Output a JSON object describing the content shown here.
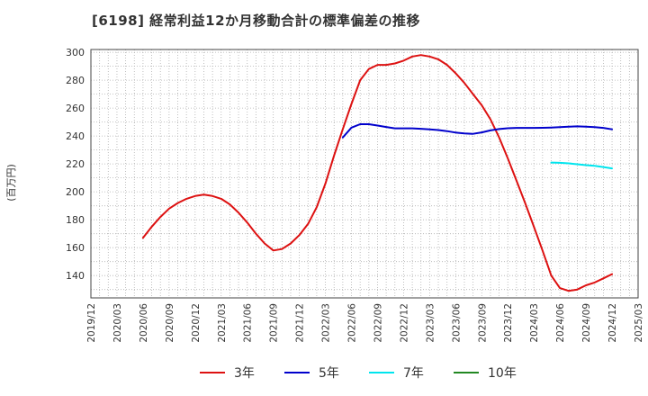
{
  "chart_data": {
    "type": "line",
    "title": "[6198]  経常利益12か月移動合計の標準偏差の推移",
    "xlabel": "",
    "ylabel": "(百万円)",
    "ylim": [
      124,
      302
    ],
    "yticks": [
      140,
      160,
      180,
      200,
      220,
      240,
      260,
      280,
      300
    ],
    "x_start": "2019-12",
    "x_end": "2025-03",
    "xtick_labels": [
      "2019/12",
      "2020/03",
      "2020/06",
      "2020/09",
      "2020/12",
      "2021/03",
      "2021/06",
      "2021/09",
      "2021/12",
      "2022/03",
      "2022/06",
      "2022/09",
      "2022/12",
      "2023/03",
      "2023/06",
      "2023/09",
      "2023/12",
      "2024/03",
      "2024/06",
      "2024/09",
      "2024/12",
      "2025/03"
    ],
    "grid": true,
    "legend_position": "bottom",
    "series": [
      {
        "name": "3年",
        "color": "#dd1111",
        "x": [
          "2020-06",
          "2020-07",
          "2020-08",
          "2020-09",
          "2020-10",
          "2020-11",
          "2020-12",
          "2021-01",
          "2021-02",
          "2021-03",
          "2021-04",
          "2021-05",
          "2021-06",
          "2021-07",
          "2021-08",
          "2021-09",
          "2021-10",
          "2021-11",
          "2021-12",
          "2022-01",
          "2022-02",
          "2022-03",
          "2022-04",
          "2022-05",
          "2022-06",
          "2022-07",
          "2022-08",
          "2022-09",
          "2022-10",
          "2022-11",
          "2022-12",
          "2023-01",
          "2023-02",
          "2023-03",
          "2023-04",
          "2023-05",
          "2023-06",
          "2023-07",
          "2023-08",
          "2023-09",
          "2023-10",
          "2023-11",
          "2023-12",
          "2024-01",
          "2024-02",
          "2024-03",
          "2024-04",
          "2024-05",
          "2024-06",
          "2024-07",
          "2024-08",
          "2024-09",
          "2024-10",
          "2024-11",
          "2024-12"
        ],
        "values": [
          167,
          175,
          182,
          188,
          192,
          195,
          197,
          198,
          197,
          195,
          191,
          185,
          178,
          170,
          163,
          158,
          159,
          163,
          169,
          177,
          189,
          206,
          226,
          245,
          263,
          280,
          288,
          291,
          291,
          292,
          294,
          297,
          298,
          297,
          295,
          291,
          285,
          278,
          270,
          262,
          252,
          239,
          224,
          208,
          192,
          175,
          158,
          140,
          131,
          129,
          130,
          133,
          135,
          138,
          141
        ]
      },
      {
        "name": "5年",
        "color": "#0000cc",
        "x": [
          "2022-05",
          "2022-06",
          "2022-07",
          "2022-08",
          "2022-09",
          "2022-10",
          "2022-11",
          "2022-12",
          "2023-01",
          "2023-02",
          "2023-03",
          "2023-04",
          "2023-05",
          "2023-06",
          "2023-07",
          "2023-08",
          "2023-09",
          "2023-10",
          "2023-11",
          "2023-12",
          "2024-01",
          "2024-02",
          "2024-03",
          "2024-04",
          "2024-05",
          "2024-06",
          "2024-07",
          "2024-08",
          "2024-09",
          "2024-10",
          "2024-11",
          "2024-12"
        ],
        "values": [
          239,
          246,
          248.5,
          248.5,
          247.5,
          246.5,
          245.5,
          245.5,
          245.5,
          245.2,
          244.8,
          244.3,
          243.5,
          242.5,
          241.8,
          241.6,
          242.6,
          244,
          245,
          245.6,
          245.8,
          245.8,
          245.8,
          245.9,
          246.1,
          246.4,
          246.7,
          246.9,
          246.7,
          246.4,
          245.8,
          244.8
        ]
      },
      {
        "name": "7年",
        "color": "#00e5ee",
        "x": [
          "2024-05",
          "2024-06",
          "2024-07",
          "2024-08",
          "2024-09",
          "2024-10",
          "2024-11",
          "2024-12"
        ],
        "values": [
          221,
          220.8,
          220.4,
          219.8,
          219.1,
          218.6,
          217.8,
          216.8
        ]
      },
      {
        "name": "10年",
        "color": "#228822",
        "x": [],
        "values": []
      }
    ]
  }
}
